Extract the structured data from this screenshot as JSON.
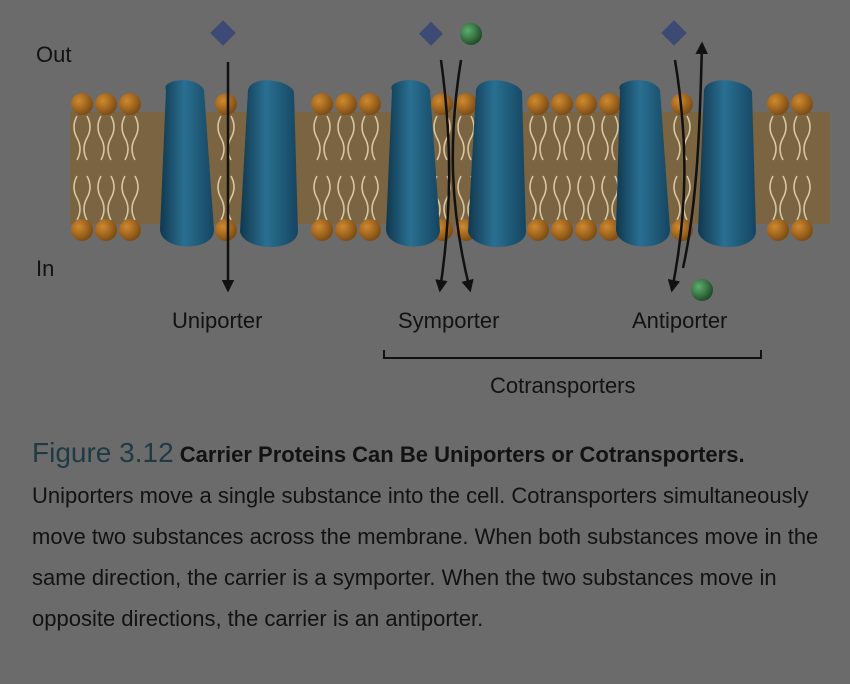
{
  "diagram": {
    "side_out": "Out",
    "side_in": "In",
    "carriers": [
      {
        "label": "Uniporter"
      },
      {
        "label": "Symporter"
      },
      {
        "label": "Antiporter"
      }
    ],
    "group_label": "Cotransporters"
  },
  "caption": {
    "figure_label": "Figure 3.12",
    "title": "Carrier Proteins Can Be Uniporters or Cotransporters.",
    "body": "Uniporters move a single substance into the cell. Cotransporters simultaneously move two substances across the membrane. When both substances move in the same direction, the carrier is a symporter. When the two substances move in opposite directions, the carrier is an antiporter."
  },
  "colors": {
    "background": "#6b6b6b",
    "membrane": "#7a6442",
    "phospholipid_head": "#a06a20",
    "protein": "#1d5674",
    "diamond": "#3d4a73",
    "sphere": "#2a6a3a",
    "figure_label": "#1f3a44"
  }
}
